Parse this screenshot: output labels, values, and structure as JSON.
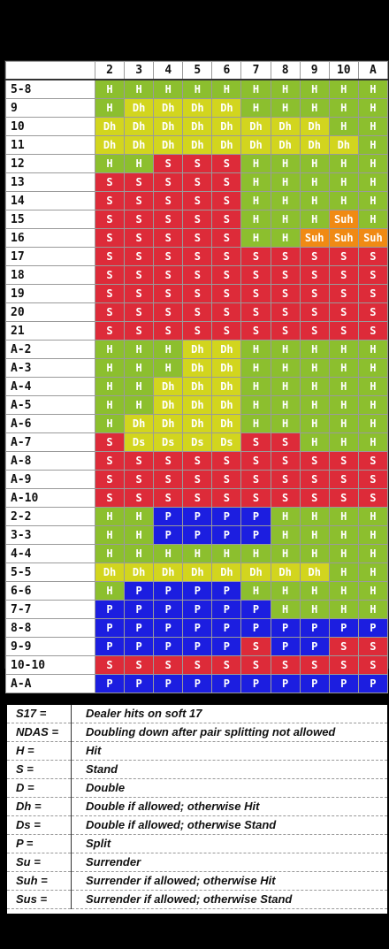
{
  "dealer_upcards": [
    "2",
    "3",
    "4",
    "5",
    "6",
    "7",
    "8",
    "9",
    "10",
    "A"
  ],
  "rows": [
    {
      "hand": "5-8",
      "actions": [
        "H",
        "H",
        "H",
        "H",
        "H",
        "H",
        "H",
        "H",
        "H",
        "H"
      ]
    },
    {
      "hand": "9",
      "actions": [
        "H",
        "Dh",
        "Dh",
        "Dh",
        "Dh",
        "H",
        "H",
        "H",
        "H",
        "H"
      ]
    },
    {
      "hand": "10",
      "actions": [
        "Dh",
        "Dh",
        "Dh",
        "Dh",
        "Dh",
        "Dh",
        "Dh",
        "Dh",
        "H",
        "H"
      ]
    },
    {
      "hand": "11",
      "actions": [
        "Dh",
        "Dh",
        "Dh",
        "Dh",
        "Dh",
        "Dh",
        "Dh",
        "Dh",
        "Dh",
        "H"
      ]
    },
    {
      "hand": "12",
      "actions": [
        "H",
        "H",
        "S",
        "S",
        "S",
        "H",
        "H",
        "H",
        "H",
        "H"
      ]
    },
    {
      "hand": "13",
      "actions": [
        "S",
        "S",
        "S",
        "S",
        "S",
        "H",
        "H",
        "H",
        "H",
        "H"
      ]
    },
    {
      "hand": "14",
      "actions": [
        "S",
        "S",
        "S",
        "S",
        "S",
        "H",
        "H",
        "H",
        "H",
        "H"
      ]
    },
    {
      "hand": "15",
      "actions": [
        "S",
        "S",
        "S",
        "S",
        "S",
        "H",
        "H",
        "H",
        "Suh",
        "H"
      ]
    },
    {
      "hand": "16",
      "actions": [
        "S",
        "S",
        "S",
        "S",
        "S",
        "H",
        "H",
        "Suh",
        "Suh",
        "Suh"
      ]
    },
    {
      "hand": "17",
      "actions": [
        "S",
        "S",
        "S",
        "S",
        "S",
        "S",
        "S",
        "S",
        "S",
        "S"
      ]
    },
    {
      "hand": "18",
      "actions": [
        "S",
        "S",
        "S",
        "S",
        "S",
        "S",
        "S",
        "S",
        "S",
        "S"
      ]
    },
    {
      "hand": "19",
      "actions": [
        "S",
        "S",
        "S",
        "S",
        "S",
        "S",
        "S",
        "S",
        "S",
        "S"
      ]
    },
    {
      "hand": "20",
      "actions": [
        "S",
        "S",
        "S",
        "S",
        "S",
        "S",
        "S",
        "S",
        "S",
        "S"
      ]
    },
    {
      "hand": "21",
      "actions": [
        "S",
        "S",
        "S",
        "S",
        "S",
        "S",
        "S",
        "S",
        "S",
        "S"
      ]
    },
    {
      "hand": "A-2",
      "actions": [
        "H",
        "H",
        "H",
        "Dh",
        "Dh",
        "H",
        "H",
        "H",
        "H",
        "H"
      ]
    },
    {
      "hand": "A-3",
      "actions": [
        "H",
        "H",
        "H",
        "Dh",
        "Dh",
        "H",
        "H",
        "H",
        "H",
        "H"
      ]
    },
    {
      "hand": "A-4",
      "actions": [
        "H",
        "H",
        "Dh",
        "Dh",
        "Dh",
        "H",
        "H",
        "H",
        "H",
        "H"
      ]
    },
    {
      "hand": "A-5",
      "actions": [
        "H",
        "H",
        "Dh",
        "Dh",
        "Dh",
        "H",
        "H",
        "H",
        "H",
        "H"
      ]
    },
    {
      "hand": "A-6",
      "actions": [
        "H",
        "Dh",
        "Dh",
        "Dh",
        "Dh",
        "H",
        "H",
        "H",
        "H",
        "H"
      ]
    },
    {
      "hand": "A-7",
      "actions": [
        "S",
        "Ds",
        "Ds",
        "Ds",
        "Ds",
        "S",
        "S",
        "H",
        "H",
        "H"
      ]
    },
    {
      "hand": "A-8",
      "actions": [
        "S",
        "S",
        "S",
        "S",
        "S",
        "S",
        "S",
        "S",
        "S",
        "S"
      ]
    },
    {
      "hand": "A-9",
      "actions": [
        "S",
        "S",
        "S",
        "S",
        "S",
        "S",
        "S",
        "S",
        "S",
        "S"
      ]
    },
    {
      "hand": "A-10",
      "actions": [
        "S",
        "S",
        "S",
        "S",
        "S",
        "S",
        "S",
        "S",
        "S",
        "S"
      ]
    },
    {
      "hand": "2-2",
      "actions": [
        "H",
        "H",
        "P",
        "P",
        "P",
        "P",
        "H",
        "H",
        "H",
        "H"
      ]
    },
    {
      "hand": "3-3",
      "actions": [
        "H",
        "H",
        "P",
        "P",
        "P",
        "P",
        "H",
        "H",
        "H",
        "H"
      ]
    },
    {
      "hand": "4-4",
      "actions": [
        "H",
        "H",
        "H",
        "H",
        "H",
        "H",
        "H",
        "H",
        "H",
        "H"
      ]
    },
    {
      "hand": "5-5",
      "actions": [
        "Dh",
        "Dh",
        "Dh",
        "Dh",
        "Dh",
        "Dh",
        "Dh",
        "Dh",
        "H",
        "H"
      ]
    },
    {
      "hand": "6-6",
      "actions": [
        "H",
        "P",
        "P",
        "P",
        "P",
        "H",
        "H",
        "H",
        "H",
        "H"
      ]
    },
    {
      "hand": "7-7",
      "actions": [
        "P",
        "P",
        "P",
        "P",
        "P",
        "P",
        "H",
        "H",
        "H",
        "H"
      ]
    },
    {
      "hand": "8-8",
      "actions": [
        "P",
        "P",
        "P",
        "P",
        "P",
        "P",
        "P",
        "P",
        "P",
        "P"
      ]
    },
    {
      "hand": "9-9",
      "actions": [
        "P",
        "P",
        "P",
        "P",
        "P",
        "S",
        "P",
        "P",
        "S",
        "S"
      ]
    },
    {
      "hand": "10-10",
      "actions": [
        "S",
        "S",
        "S",
        "S",
        "S",
        "S",
        "S",
        "S",
        "S",
        "S"
      ]
    },
    {
      "hand": "A-A",
      "actions": [
        "P",
        "P",
        "P",
        "P",
        "P",
        "P",
        "P",
        "P",
        "P",
        "P"
      ]
    }
  ],
  "legend": [
    {
      "term": "S17 =",
      "definition": "Dealer hits on soft 17"
    },
    {
      "term": "NDAS =",
      "definition": "Doubling down after pair splitting not allowed"
    },
    {
      "term": "H =",
      "definition": "Hit"
    },
    {
      "term": "S =",
      "definition": "Stand"
    },
    {
      "term": "D =",
      "definition": "Double"
    },
    {
      "term": "Dh =",
      "definition": "Double if allowed; otherwise Hit"
    },
    {
      "term": "Ds =",
      "definition": "Double if allowed; otherwise Stand"
    },
    {
      "term": "P =",
      "definition": "Split"
    },
    {
      "term": "Su =",
      "definition": "Surrender"
    },
    {
      "term": "Suh =",
      "definition": "Surrender if allowed; otherwise Hit"
    },
    {
      "term": "Sus =",
      "definition": "Surrender if allowed; otherwise Stand"
    }
  ],
  "colors": {
    "H": "#8cbf2e",
    "S": "#dd2b39",
    "Dh": "#d2d51e",
    "Ds": "#d2d51e",
    "P": "#1c1ee0",
    "Suh": "#f08a14"
  }
}
